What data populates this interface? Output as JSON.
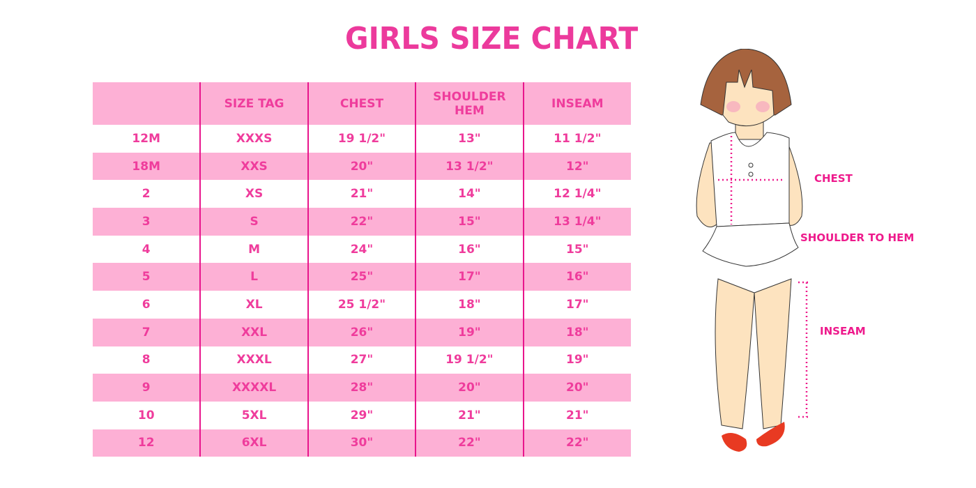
{
  "title": "GIRLS SIZE CHART",
  "table": {
    "headers": [
      "",
      "SIZE TAG",
      "CHEST",
      "SHOULDER HEM",
      "INSEAM"
    ],
    "rows": [
      [
        "12M",
        "XXXS",
        "19 1/2\"",
        "13\"",
        "11 1/2\""
      ],
      [
        "18M",
        "XXS",
        "20\"",
        "13 1/2\"",
        "12\""
      ],
      [
        "2",
        "XS",
        "21\"",
        "14\"",
        "12 1/4\""
      ],
      [
        "3",
        "S",
        "22\"",
        "15\"",
        "13 1/4\""
      ],
      [
        "4",
        "M",
        "24\"",
        "16\"",
        "15\""
      ],
      [
        "5",
        "L",
        "25\"",
        "17\"",
        "16\""
      ],
      [
        "6",
        "XL",
        "25 1/2\"",
        "18\"",
        "17\""
      ],
      [
        "7",
        "XXL",
        "26\"",
        "19\"",
        "18\""
      ],
      [
        "8",
        "XXXL",
        "27\"",
        "19 1/2\"",
        "19\""
      ],
      [
        "9",
        "XXXXL",
        "28\"",
        "20\"",
        "20\""
      ],
      [
        "10",
        "5XL",
        "29\"",
        "21\"",
        "21\""
      ],
      [
        "12",
        "6XL",
        "30\"",
        "22\"",
        "22\""
      ]
    ]
  },
  "illustration": {
    "chest_label": "CHEST",
    "shoulder_label": "SHOULDER TO HEM",
    "inseam_label": "INSEAM"
  },
  "colors": {
    "accent": "#ec3a9c",
    "row_pink": "#fdb0d5",
    "divider": "#e8158c"
  }
}
